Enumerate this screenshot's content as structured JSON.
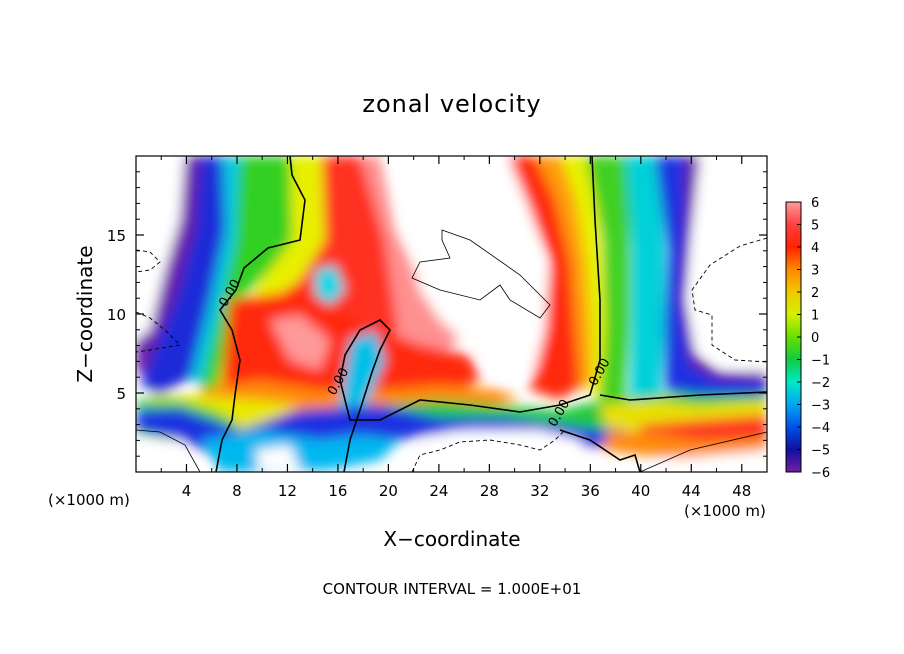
{
  "chart_data": {
    "type": "heatmap",
    "title": "zonal velocity",
    "xlabel": "X−coordinate",
    "ylabel": "Z−coordinate",
    "x_unit_left": "(×1000 m)",
    "x_unit_right": "(×1000 m)",
    "footer": "CONTOUR INTERVAL = 1.000E+01",
    "xlim": [
      0,
      50
    ],
    "ylim": [
      0,
      20
    ],
    "x_ticks": [
      4,
      8,
      12,
      16,
      20,
      24,
      28,
      32,
      36,
      40,
      44,
      48
    ],
    "x_tick_labels": [
      "4",
      "8",
      "12",
      "16",
      "20",
      "24",
      "28",
      "32",
      "36",
      "40",
      "44",
      "48"
    ],
    "y_ticks": [
      5,
      10,
      15
    ],
    "y_tick_labels": [
      "5",
      "10",
      "15"
    ],
    "contour_labels": [
      {
        "text": "0.00",
        "x": 7.7,
        "z": 11.2
      },
      {
        "text": "0.00",
        "x": 16.3,
        "z": 5.6
      },
      {
        "text": "0.00",
        "x": 37.0,
        "z": 6.2
      },
      {
        "text": "0.00",
        "x": 33.8,
        "z": 3.6
      }
    ],
    "colorbar": {
      "values": [
        6,
        5,
        4,
        3,
        2,
        1,
        0,
        -1,
        -2,
        -3,
        -4,
        -5,
        -6
      ],
      "labels": [
        "6",
        "5",
        "4",
        "3",
        "2",
        "1",
        "0",
        "−1",
        "−2",
        "−3",
        "−4",
        "−5",
        "−6"
      ],
      "colors": [
        "#ff9a9a",
        "#ff4040",
        "#ff2200",
        "#ff8800",
        "#f0c800",
        "#d4f000",
        "#66e000",
        "#10cc40",
        "#00e8c8",
        "#00a8f0",
        "#0050e8",
        "#1010a0",
        "#7020a0"
      ]
    }
  }
}
